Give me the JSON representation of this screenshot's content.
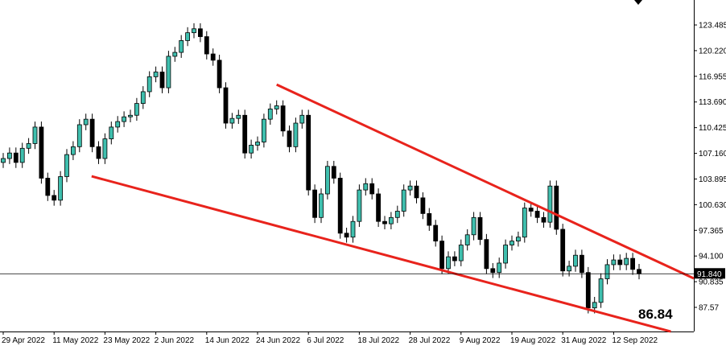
{
  "chart_data": {
    "type": "candlestick",
    "categories": [
      "29 Apr 2022",
      null,
      null,
      null,
      null,
      null,
      null,
      null,
      "11 May 2022",
      null,
      null,
      null,
      null,
      null,
      null,
      null,
      "23 May 2022",
      null,
      null,
      null,
      null,
      null,
      null,
      null,
      "2 Jun 2022",
      null,
      null,
      null,
      null,
      null,
      null,
      null,
      "14 Jun 2022",
      null,
      null,
      null,
      null,
      null,
      null,
      null,
      "24 Jun 2022",
      null,
      null,
      null,
      null,
      null,
      null,
      null,
      "6 Jul 2022",
      null,
      null,
      null,
      null,
      null,
      null,
      null,
      "18 Jul 2022",
      null,
      null,
      null,
      null,
      null,
      null,
      null,
      "28 Jul 2022",
      null,
      null,
      null,
      null,
      null,
      null,
      null,
      "9 Aug 2022",
      null,
      null,
      null,
      null,
      null,
      null,
      null,
      "19 Aug 2022",
      null,
      null,
      null,
      null,
      null,
      null,
      null,
      "31 Aug 2022",
      null,
      null,
      null,
      null,
      null,
      null,
      null,
      "12 Sep 2022",
      null,
      null,
      null,
      null
    ],
    "open": [
      106.0,
      106.5,
      107.2,
      106.0,
      107.8,
      108.4,
      110.5,
      104.0,
      101.8,
      101.2,
      104.2,
      107.0,
      108.0,
      110.8,
      111.5,
      108.0,
      106.5,
      109.0,
      110.5,
      111.2,
      111.8,
      112.0,
      113.5,
      115.0,
      116.9,
      117.5,
      115.5,
      119.5,
      120.0,
      121.5,
      122.5,
      123.0,
      122.0,
      119.8,
      119.0,
      115.5,
      111.0,
      111.6,
      112.0,
      107.2,
      108.2,
      108.6,
      111.5,
      112.8,
      113.2,
      110.0,
      108.0,
      111.0,
      112.0,
      102.5,
      99.0,
      102.0,
      105.5,
      104.0,
      97.0,
      96.5,
      98.5,
      102.5,
      103.3,
      102.0,
      98.5,
      98.2,
      99.0,
      99.8,
      102.5,
      103.0,
      101.5,
      99.5,
      98.0,
      96.0,
      92.5,
      94.0,
      93.5,
      95.5,
      96.8,
      99.0,
      96.2,
      92.5,
      92.0,
      93.2,
      95.5,
      96.0,
      96.5,
      100.2,
      99.8,
      99.0,
      98.4,
      103.0,
      97.5,
      92.2,
      92.8,
      94.2,
      92.0,
      87.5,
      88.2,
      91.2,
      93.0,
      93.6,
      93.0,
      93.8,
      92.4
    ],
    "high": [
      107.2,
      107.9,
      107.9,
      108.5,
      109.1,
      111.2,
      111.2,
      104.7,
      102.5,
      104.9,
      107.7,
      108.7,
      111.5,
      112.2,
      112.2,
      108.7,
      109.7,
      111.2,
      111.9,
      112.5,
      112.7,
      114.2,
      115.7,
      117.6,
      118.2,
      118.2,
      120.2,
      120.7,
      122.2,
      123.2,
      123.7,
      123.7,
      122.7,
      120.5,
      119.7,
      116.2,
      112.3,
      112.7,
      112.7,
      108.9,
      109.3,
      112.2,
      113.5,
      113.9,
      113.9,
      110.7,
      111.7,
      112.7,
      112.7,
      103.2,
      102.7,
      106.2,
      106.2,
      104.7,
      97.7,
      99.2,
      103.2,
      104.0,
      104.0,
      102.7,
      99.2,
      99.7,
      100.5,
      103.2,
      103.7,
      103.7,
      102.2,
      100.2,
      98.7,
      96.7,
      94.7,
      94.7,
      96.2,
      97.5,
      99.7,
      99.7,
      96.9,
      93.2,
      93.9,
      96.2,
      96.7,
      97.2,
      100.9,
      100.9,
      100.5,
      99.7,
      103.7,
      103.7,
      98.2,
      93.5,
      94.9,
      94.9,
      92.7,
      88.9,
      91.9,
      93.7,
      94.3,
      94.3,
      94.5,
      94.5,
      93.1
    ],
    "low": [
      105.3,
      105.8,
      105.3,
      105.3,
      107.1,
      107.7,
      103.3,
      101.1,
      100.5,
      100.5,
      103.5,
      106.3,
      107.3,
      110.1,
      107.3,
      105.8,
      105.8,
      108.3,
      109.8,
      110.5,
      111.1,
      111.3,
      112.8,
      114.3,
      116.2,
      114.8,
      114.8,
      118.8,
      119.3,
      120.8,
      121.8,
      121.3,
      119.1,
      118.3,
      114.8,
      110.3,
      110.3,
      110.9,
      106.5,
      106.5,
      107.5,
      107.9,
      110.8,
      112.1,
      109.3,
      107.3,
      107.3,
      110.3,
      101.8,
      98.3,
      98.3,
      101.3,
      103.3,
      96.3,
      95.8,
      95.8,
      97.8,
      101.8,
      101.3,
      97.8,
      97.5,
      97.5,
      98.3,
      99.1,
      101.8,
      100.8,
      98.8,
      97.3,
      95.3,
      91.8,
      91.8,
      92.8,
      92.8,
      94.8,
      96.1,
      95.5,
      91.8,
      91.3,
      91.3,
      92.5,
      94.8,
      95.3,
      95.8,
      99.1,
      98.3,
      97.7,
      97.7,
      96.8,
      91.5,
      91.5,
      92.1,
      91.3,
      86.8,
      86.8,
      87.5,
      90.5,
      92.3,
      92.3,
      92.3,
      91.7,
      91.14
    ],
    "close": [
      106.5,
      107.2,
      106.0,
      107.8,
      108.4,
      110.5,
      104.0,
      101.8,
      101.2,
      104.2,
      107.0,
      108.0,
      110.8,
      111.5,
      108.0,
      106.5,
      109.0,
      110.5,
      111.2,
      111.8,
      112.0,
      113.5,
      115.0,
      116.9,
      117.5,
      115.5,
      119.5,
      120.0,
      121.5,
      122.5,
      123.0,
      122.0,
      119.8,
      119.0,
      115.5,
      111.0,
      111.6,
      112.0,
      107.2,
      108.2,
      108.6,
      111.5,
      112.8,
      113.2,
      110.0,
      108.0,
      111.0,
      112.0,
      102.5,
      99.0,
      102.0,
      105.5,
      104.0,
      97.0,
      96.5,
      98.5,
      102.5,
      103.3,
      102.0,
      98.5,
      98.2,
      99.0,
      99.8,
      102.5,
      103.0,
      101.5,
      99.5,
      98.0,
      96.0,
      92.5,
      94.0,
      93.5,
      95.5,
      96.8,
      99.0,
      96.2,
      92.5,
      92.0,
      93.2,
      95.5,
      96.0,
      96.5,
      100.2,
      99.8,
      99.0,
      98.4,
      103.0,
      97.5,
      92.2,
      92.8,
      94.2,
      92.0,
      87.5,
      88.2,
      91.2,
      93.0,
      93.6,
      93.0,
      93.8,
      92.4,
      91.84
    ],
    "color": "#3fbfae",
    "ylim": [
      84.5,
      126.66
    ],
    "yticks": [
      87.57,
      {
        "value": 87.57,
        "label": "87.570"
      },
      90.835,
      {
        "value": 94.1,
        "label": "94.100"
      },
      97.365,
      {
        "value": 100.63,
        "label": "100.630"
      },
      103.895,
      {
        "value": 107.16,
        "label": "107.160"
      },
      110.425,
      {
        "value": 113.69,
        "label": "113.690"
      },
      116.955,
      {
        "value": 120.22,
        "label": "120.220"
      },
      123.485
    ],
    "current_price": {
      "value": 91.84,
      "label": "91.840"
    },
    "trendlines": [
      {
        "x": [
          43,
          108.6
        ],
        "values": [
          115.9,
          91.25
        ],
        "color": "#e8231c"
      },
      {
        "x": [
          13.9,
          105
        ],
        "values": [
          104.24,
          84.49
        ],
        "color": "#e8231c"
      }
    ],
    "annotation": "86.84"
  }
}
